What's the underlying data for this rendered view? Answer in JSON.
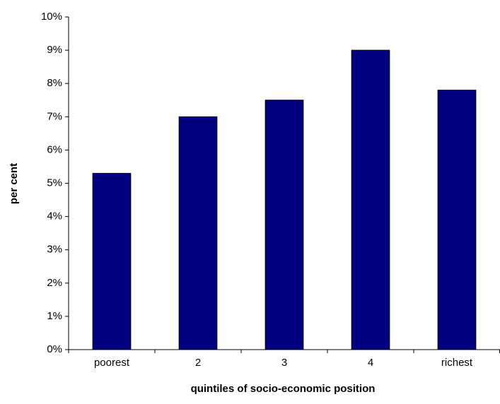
{
  "chart_data": {
    "type": "bar",
    "x_label": "quintiles of socio-economic position",
    "y_label": "per cent",
    "categories": [
      "poorest",
      "2",
      "3",
      "4",
      "richest"
    ],
    "values": [
      5.3,
      7.0,
      7.5,
      9.0,
      7.8
    ],
    "color": "#000080",
    "ylim": [
      0,
      10
    ],
    "yticks": [
      {
        "value": 0,
        "label": "0%"
      },
      {
        "value": 1,
        "label": "1%"
      },
      {
        "value": 2,
        "label": "2%"
      },
      {
        "value": 3,
        "label": "3%"
      },
      {
        "value": 4,
        "label": "4%"
      },
      {
        "value": 5,
        "label": "5%"
      },
      {
        "value": 6,
        "label": "6%"
      },
      {
        "value": 7,
        "label": "7%"
      },
      {
        "value": 8,
        "label": "8%"
      },
      {
        "value": 9,
        "label": "9%"
      },
      {
        "value": 10,
        "label": "10%"
      }
    ],
    "grid": false
  }
}
